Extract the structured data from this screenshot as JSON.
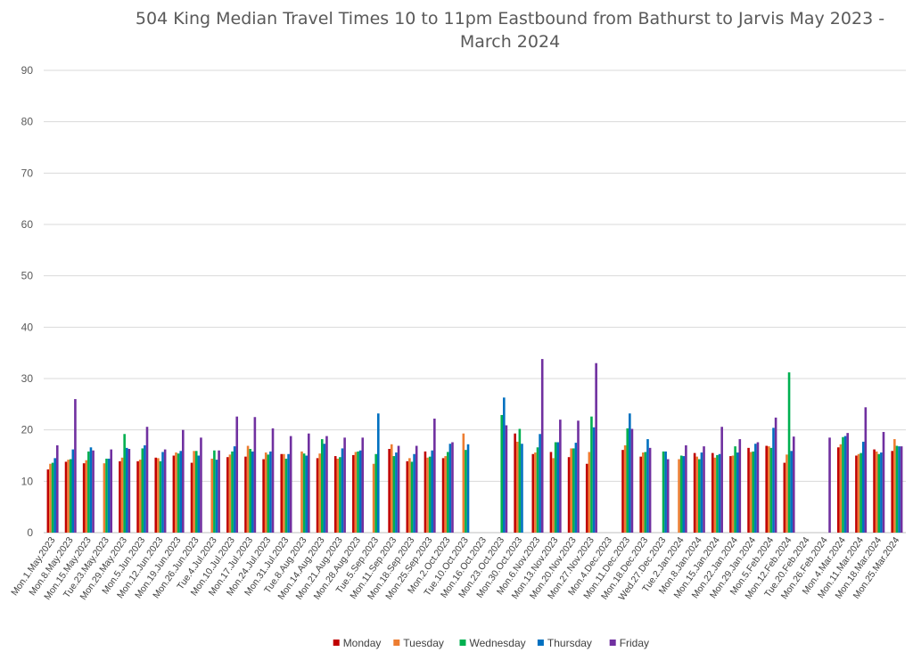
{
  "chart_data": {
    "type": "bar",
    "title": "504 King Median Travel Times 10 to 11pm Eastbound from Bathurst to Jarvis May 2023 - March 2024",
    "xlabel": "",
    "ylabel": "",
    "ylim": [
      0,
      90
    ],
    "yticks": [
      0,
      10,
      20,
      30,
      40,
      50,
      60,
      70,
      80,
      90
    ],
    "grid": true,
    "legend_position": "bottom",
    "categories": [
      "Mon.1.May.2023",
      "Mon.8.May.2023",
      "Mon.15.May.2023",
      "Tue.23.May.2023",
      "Mon.29.May.2023",
      "Mon.5.Jun.2023",
      "Mon.12.Jun.2023",
      "Mon.19.Jun.2023",
      "Mon.26.Jun.2023",
      "Tue.4.Jul.2023",
      "Mon.10.Jul.2023",
      "Mon.17.Jul.2023",
      "Mon.24.Jul.2023",
      "Mon.31.Jul.2023",
      "Tue.8.Aug.2023",
      "Mon.14.Aug.2023",
      "Mon.21.Aug.2023",
      "Mon.28.Aug.2023",
      "Tue.5.Sep.2023",
      "Mon.11.Sep.2023",
      "Mon.18.Sep.2023",
      "Mon.25.Sep.2023",
      "Mon.2.Oct.2023",
      "Tue.10.Oct.2023",
      "Mon.16.Oct.2023",
      "Mon.23.Oct.2023",
      "Mon.30.Oct.2023",
      "Mon.6.Nov.2023",
      "Mon.13.Nov.2023",
      "Mon.20.Nov.2023",
      "Mon.27.Nov.2023",
      "Mon.4.Dec.2023",
      "Mon.11.Dec.2023",
      "Mon.18.Dec.2023",
      "Wed.27.Dec.2023",
      "Tue.2.Jan.2024",
      "Mon.8.Jan.2024",
      "Mon.15.Jan.2024",
      "Mon.22.Jan.2024",
      "Mon.29.Jan.2024",
      "Mon.5.Feb.2024",
      "Mon.12.Feb.2024",
      "Tue.20.Feb.2024",
      "Mon.26.Feb.2024",
      "Mon.4.Mar.2024",
      "Mon.11.Mar.2024",
      "Mon.18.Mar.2024",
      "Mon.25.Mar.2024"
    ],
    "series": [
      {
        "name": "Monday",
        "color": "#C00000",
        "values": [
          12.3,
          13.8,
          13.5,
          null,
          13.9,
          13.9,
          14.6,
          15.0,
          13.6,
          null,
          14.7,
          14.8,
          14.3,
          15.3,
          null,
          14.5,
          14.9,
          15.1,
          null,
          16.3,
          13.9,
          15.8,
          14.5,
          null,
          null,
          null,
          19.3,
          15.3,
          15.7,
          14.7,
          13.4,
          null,
          16.1,
          14.8,
          null,
          null,
          15.5,
          15.5,
          14.9,
          16.5,
          16.9,
          13.6,
          null,
          null,
          16.6,
          15.0,
          16.2,
          15.9
        ]
      },
      {
        "name": "Tuesday",
        "color": "#ED7D31",
        "values": [
          13.4,
          14.2,
          14.1,
          13.5,
          14.6,
          14.2,
          14.5,
          15.6,
          15.9,
          14.4,
          15.2,
          16.9,
          15.6,
          15.3,
          15.8,
          15.4,
          14.4,
          15.7,
          13.4,
          17.2,
          14.5,
          14.6,
          14.9,
          19.3,
          null,
          null,
          17.7,
          15.6,
          14.5,
          16.4,
          15.7,
          null,
          17.0,
          15.6,
          null,
          14.3,
          14.8,
          14.6,
          15.0,
          15.7,
          16.8,
          15.2,
          null,
          null,
          17.2,
          15.3,
          15.8,
          18.2
        ]
      },
      {
        "name": "Wednesday",
        "color": "#00B050",
        "values": [
          13.6,
          14.3,
          15.8,
          14.4,
          19.2,
          16.4,
          13.9,
          15.4,
          15.9,
          16.0,
          15.8,
          16.3,
          15.2,
          14.4,
          15.4,
          18.2,
          14.7,
          15.8,
          15.3,
          14.9,
          13.8,
          14.8,
          15.7,
          16.1,
          null,
          22.9,
          20.2,
          16.6,
          17.6,
          16.4,
          22.6,
          null,
          20.3,
          15.7,
          15.8,
          15.0,
          14.3,
          15.1,
          16.8,
          15.8,
          16.5,
          31.2,
          null,
          null,
          18.6,
          15.5,
          15.3,
          16.9
        ]
      },
      {
        "name": "Thursday",
        "color": "#0070C0",
        "values": [
          14.5,
          16.2,
          16.6,
          14.4,
          16.5,
          17.0,
          15.7,
          15.9,
          15.0,
          14.2,
          16.8,
          15.8,
          15.8,
          15.3,
          15.0,
          17.3,
          16.4,
          16.0,
          23.2,
          15.6,
          15.3,
          16.0,
          17.3,
          17.2,
          null,
          26.3,
          17.3,
          19.2,
          17.6,
          17.5,
          20.5,
          null,
          23.2,
          18.2,
          15.8,
          14.9,
          15.6,
          15.3,
          15.6,
          17.3,
          20.4,
          15.9,
          null,
          null,
          18.8,
          17.7,
          15.6,
          16.8
        ]
      },
      {
        "name": "Friday",
        "color": "#7030A0",
        "values": [
          17.0,
          26.0,
          16.0,
          16.2,
          16.3,
          20.6,
          16.2,
          20.0,
          18.5,
          16.0,
          22.6,
          22.5,
          20.3,
          18.8,
          19.3,
          18.8,
          18.5,
          18.5,
          null,
          16.9,
          16.9,
          22.2,
          17.6,
          null,
          null,
          20.9,
          null,
          33.8,
          22.0,
          21.8,
          33.0,
          null,
          20.2,
          16.5,
          14.3,
          17.0,
          16.8,
          20.6,
          18.2,
          17.6,
          22.4,
          18.7,
          null,
          18.5,
          19.4,
          24.4,
          19.6,
          16.8
        ]
      }
    ]
  }
}
